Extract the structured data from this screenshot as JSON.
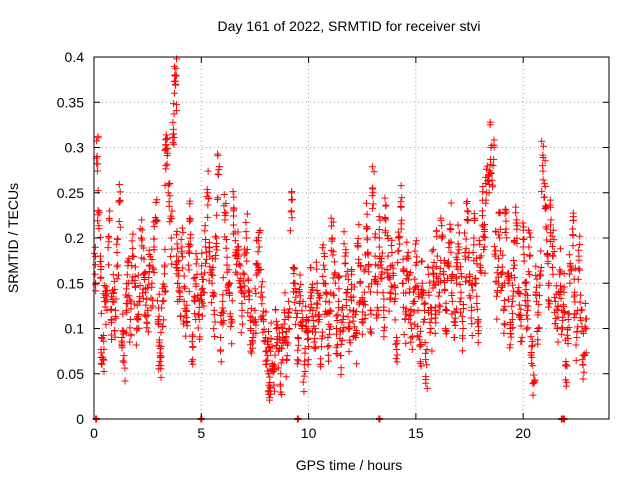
{
  "chart_data": {
    "type": "scatter",
    "title": "Day 161 of 2022, SRMTID for receiver stvi",
    "xlabel": "GPS time / hours",
    "ylabel": "SRMTID / TECUs",
    "xlim": [
      0,
      24
    ],
    "ylim": [
      0,
      0.4
    ],
    "xticks": [
      0,
      5,
      10,
      15,
      20
    ],
    "yticks": [
      0,
      0.05,
      0.1,
      0.15,
      0.2,
      0.25,
      0.3,
      0.35,
      0.4
    ],
    "xtick_labels": [
      "0",
      "5",
      "10",
      "15",
      "20"
    ],
    "ytick_labels": [
      "0",
      "0.05",
      "0.1",
      "0.15",
      "0.2",
      "0.25",
      "0.3",
      "0.35",
      "0.4"
    ],
    "grid": true,
    "marker": "plus",
    "color": "#ff0000",
    "points": [
      [
        0.05,
        0.16
      ],
      [
        0.15,
        0.29
      ],
      [
        0.2,
        0.23
      ],
      [
        0.3,
        0.18
      ],
      [
        0.35,
        0.09
      ],
      [
        0.45,
        0.065
      ],
      [
        0.5,
        0.13
      ],
      [
        0.6,
        0.12
      ],
      [
        0.7,
        0.2
      ],
      [
        0.8,
        0.11
      ],
      [
        0.9,
        0.14
      ],
      [
        1.0,
        0.12
      ],
      [
        1.1,
        0.17
      ],
      [
        1.2,
        0.24
      ],
      [
        1.3,
        0.09
      ],
      [
        1.4,
        0.07
      ],
      [
        1.5,
        0.12
      ],
      [
        1.6,
        0.15
      ],
      [
        1.7,
        0.11
      ],
      [
        1.8,
        0.18
      ],
      [
        1.9,
        0.15
      ],
      [
        2.0,
        0.1
      ],
      [
        2.1,
        0.13
      ],
      [
        2.2,
        0.2
      ],
      [
        2.3,
        0.16
      ],
      [
        2.4,
        0.14
      ],
      [
        2.5,
        0.12
      ],
      [
        2.6,
        0.17
      ],
      [
        2.7,
        0.15
      ],
      [
        2.8,
        0.19
      ],
      [
        2.9,
        0.22
      ],
      [
        3.0,
        0.11
      ],
      [
        3.05,
        0.085
      ],
      [
        3.1,
        0.07
      ],
      [
        3.2,
        0.13
      ],
      [
        3.3,
        0.17
      ],
      [
        3.35,
        0.28
      ],
      [
        3.4,
        0.31
      ],
      [
        3.5,
        0.24
      ],
      [
        3.6,
        0.2
      ],
      [
        3.7,
        0.32
      ],
      [
        3.75,
        0.36
      ],
      [
        3.8,
        0.37
      ],
      [
        3.85,
        0.18
      ],
      [
        3.9,
        0.15
      ],
      [
        4.0,
        0.14
      ],
      [
        4.1,
        0.19
      ],
      [
        4.2,
        0.13
      ],
      [
        4.3,
        0.12
      ],
      [
        4.4,
        0.17
      ],
      [
        4.5,
        0.22
      ],
      [
        4.6,
        0.08
      ],
      [
        4.7,
        0.13
      ],
      [
        4.8,
        0.16
      ],
      [
        4.9,
        0.11
      ],
      [
        5.0,
        0.16
      ],
      [
        5.1,
        0.14
      ],
      [
        5.2,
        0.19
      ],
      [
        5.3,
        0.25
      ],
      [
        5.4,
        0.18
      ],
      [
        5.5,
        0.15
      ],
      [
        5.6,
        0.12
      ],
      [
        5.7,
        0.2
      ],
      [
        5.8,
        0.27
      ],
      [
        5.9,
        0.09
      ],
      [
        6.0,
        0.13
      ],
      [
        6.1,
        0.22
      ],
      [
        6.2,
        0.17
      ],
      [
        6.3,
        0.14
      ],
      [
        6.4,
        0.11
      ],
      [
        6.5,
        0.23
      ],
      [
        6.6,
        0.18
      ],
      [
        6.7,
        0.19
      ],
      [
        6.8,
        0.15
      ],
      [
        6.9,
        0.12
      ],
      [
        7.0,
        0.16
      ],
      [
        7.1,
        0.2
      ],
      [
        7.2,
        0.14
      ],
      [
        7.3,
        0.1
      ],
      [
        7.4,
        0.09
      ],
      [
        7.5,
        0.12
      ],
      [
        7.6,
        0.17
      ],
      [
        7.7,
        0.19
      ],
      [
        7.8,
        0.14
      ],
      [
        7.9,
        0.11
      ],
      [
        8.0,
        0.09
      ],
      [
        8.1,
        0.07
      ],
      [
        8.15,
        0.03
      ],
      [
        8.2,
        0.055
      ],
      [
        8.3,
        0.08
      ],
      [
        8.4,
        0.06
      ],
      [
        8.5,
        0.1
      ],
      [
        8.6,
        0.075
      ],
      [
        8.7,
        0.05
      ],
      [
        8.8,
        0.09
      ],
      [
        8.9,
        0.11
      ],
      [
        9.0,
        0.07
      ],
      [
        9.1,
        0.1
      ],
      [
        9.2,
        0.23
      ],
      [
        9.3,
        0.15
      ],
      [
        9.4,
        0.12
      ],
      [
        9.5,
        0.09
      ],
      [
        9.6,
        0.13
      ],
      [
        9.7,
        0.1
      ],
      [
        9.8,
        0.06
      ],
      [
        9.9,
        0.11
      ],
      [
        10.0,
        0.08
      ],
      [
        10.1,
        0.14
      ],
      [
        10.2,
        0.12
      ],
      [
        10.3,
        0.1
      ],
      [
        10.4,
        0.15
      ],
      [
        10.5,
        0.11
      ],
      [
        10.6,
        0.08
      ],
      [
        10.7,
        0.17
      ],
      [
        10.8,
        0.13
      ],
      [
        10.9,
        0.09
      ],
      [
        11.0,
        0.12
      ],
      [
        11.1,
        0.2
      ],
      [
        11.2,
        0.16
      ],
      [
        11.3,
        0.1
      ],
      [
        11.4,
        0.13
      ],
      [
        11.5,
        0.07
      ],
      [
        11.6,
        0.11
      ],
      [
        11.7,
        0.18
      ],
      [
        11.8,
        0.14
      ],
      [
        11.9,
        0.1
      ],
      [
        12.0,
        0.16
      ],
      [
        12.1,
        0.12
      ],
      [
        12.2,
        0.09
      ],
      [
        12.3,
        0.19
      ],
      [
        12.4,
        0.15
      ],
      [
        12.5,
        0.11
      ],
      [
        12.6,
        0.14
      ],
      [
        12.7,
        0.21
      ],
      [
        12.8,
        0.17
      ],
      [
        12.9,
        0.12
      ],
      [
        13.0,
        0.25
      ],
      [
        13.1,
        0.18
      ],
      [
        13.2,
        0.14
      ],
      [
        13.3,
        0.2
      ],
      [
        13.4,
        0.16
      ],
      [
        13.5,
        0.12
      ],
      [
        13.6,
        0.22
      ],
      [
        13.7,
        0.18
      ],
      [
        13.8,
        0.14
      ],
      [
        13.9,
        0.17
      ],
      [
        14.0,
        0.13
      ],
      [
        14.1,
        0.09
      ],
      [
        14.2,
        0.2
      ],
      [
        14.3,
        0.24
      ],
      [
        14.4,
        0.15
      ],
      [
        14.5,
        0.11
      ],
      [
        14.6,
        0.18
      ],
      [
        14.7,
        0.14
      ],
      [
        14.8,
        0.1
      ],
      [
        14.9,
        0.13
      ],
      [
        15.0,
        0.17
      ],
      [
        15.1,
        0.12
      ],
      [
        15.2,
        0.08
      ],
      [
        15.3,
        0.15
      ],
      [
        15.4,
        0.11
      ],
      [
        15.5,
        0.06
      ],
      [
        15.6,
        0.14
      ],
      [
        15.7,
        0.1
      ],
      [
        15.8,
        0.16
      ],
      [
        15.9,
        0.12
      ],
      [
        16.0,
        0.18
      ],
      [
        16.1,
        0.14
      ],
      [
        16.2,
        0.2
      ],
      [
        16.3,
        0.16
      ],
      [
        16.4,
        0.12
      ],
      [
        16.5,
        0.17
      ],
      [
        16.6,
        0.21
      ],
      [
        16.7,
        0.13
      ],
      [
        16.8,
        0.09
      ],
      [
        16.9,
        0.15
      ],
      [
        17.0,
        0.19
      ],
      [
        17.1,
        0.14
      ],
      [
        17.2,
        0.1
      ],
      [
        17.3,
        0.18
      ],
      [
        17.4,
        0.22
      ],
      [
        17.5,
        0.16
      ],
      [
        17.6,
        0.12
      ],
      [
        17.7,
        0.2
      ],
      [
        17.8,
        0.15
      ],
      [
        17.9,
        0.11
      ],
      [
        18.0,
        0.17
      ],
      [
        18.1,
        0.23
      ],
      [
        18.2,
        0.19
      ],
      [
        18.3,
        0.25
      ],
      [
        18.4,
        0.27
      ],
      [
        18.5,
        0.3
      ],
      [
        18.6,
        0.28
      ],
      [
        18.7,
        0.18
      ],
      [
        18.8,
        0.14
      ],
      [
        18.9,
        0.2
      ],
      [
        19.0,
        0.16
      ],
      [
        19.1,
        0.12
      ],
      [
        19.2,
        0.21
      ],
      [
        19.3,
        0.15
      ],
      [
        19.4,
        0.1
      ],
      [
        19.5,
        0.13
      ],
      [
        19.6,
        0.17
      ],
      [
        19.7,
        0.22
      ],
      [
        19.8,
        0.14
      ],
      [
        19.9,
        0.11
      ],
      [
        20.0,
        0.19
      ],
      [
        20.1,
        0.15
      ],
      [
        20.2,
        0.12
      ],
      [
        20.3,
        0.18
      ],
      [
        20.4,
        0.08
      ],
      [
        20.5,
        0.04
      ],
      [
        20.6,
        0.14
      ],
      [
        20.7,
        0.1
      ],
      [
        20.8,
        0.16
      ],
      [
        20.9,
        0.28
      ],
      [
        21.0,
        0.26
      ],
      [
        21.1,
        0.21
      ],
      [
        21.2,
        0.15
      ],
      [
        21.3,
        0.22
      ],
      [
        21.4,
        0.18
      ],
      [
        21.5,
        0.13
      ],
      [
        21.6,
        0.1
      ],
      [
        21.7,
        0.16
      ],
      [
        21.8,
        0.12
      ],
      [
        21.9,
        0.14
      ],
      [
        22.0,
        0.06
      ],
      [
        22.1,
        0.11
      ],
      [
        22.2,
        0.17
      ],
      [
        22.3,
        0.21
      ],
      [
        22.4,
        0.14
      ],
      [
        22.5,
        0.09
      ],
      [
        22.6,
        0.18
      ],
      [
        22.7,
        0.12
      ],
      [
        22.8,
        0.07
      ],
      [
        22.9,
        0.1
      ]
    ],
    "zero_points": [
      0.1,
      5.0,
      9.5,
      13.3,
      21.8,
      21.9
    ]
  }
}
